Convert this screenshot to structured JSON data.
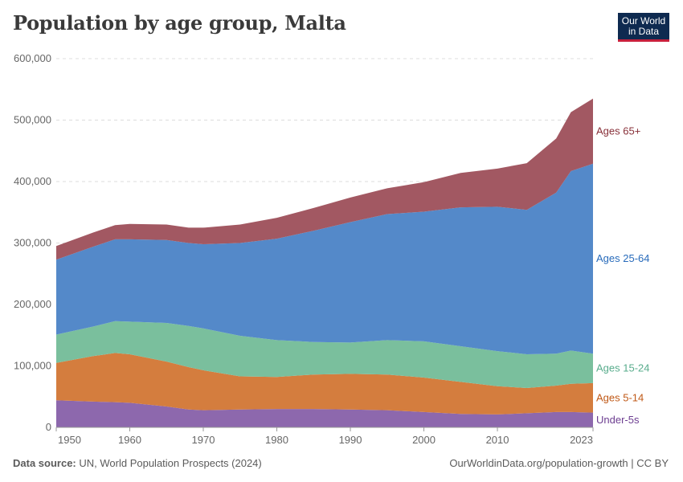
{
  "title": "Population by age group, Malta",
  "logo": {
    "line1": "Our World",
    "line2": "in Data"
  },
  "footer": {
    "source_label": "Data source:",
    "source_text": "UN, World Population Prospects (2024)",
    "url": "OurWorldinData.org/population-growth | CC BY"
  },
  "chart_data": {
    "type": "area",
    "stacked": true,
    "title": "Population by age group, Malta",
    "xlabel": "",
    "ylabel": "",
    "ylim": [
      0,
      600000
    ],
    "xlim": [
      1950,
      2023
    ],
    "grid": true,
    "yticks": [
      0,
      100000,
      200000,
      300000,
      400000,
      500000,
      600000
    ],
    "ytick_labels": [
      "0",
      "100,000",
      "200,000",
      "300,000",
      "400,000",
      "500,000",
      "600,000"
    ],
    "xticks": [
      1950,
      1960,
      1970,
      1980,
      1990,
      2000,
      2010,
      2023
    ],
    "xtick_labels": [
      "1950",
      "1960",
      "1970",
      "1980",
      "1990",
      "2000",
      "2010",
      "2023"
    ],
    "x": [
      1950,
      1955,
      1958,
      1960,
      1965,
      1968,
      1970,
      1975,
      1980,
      1985,
      1990,
      1995,
      2000,
      2005,
      2010,
      2014,
      2018,
      2020,
      2023
    ],
    "series": [
      {
        "name": "Under-5s",
        "color": "#8d68ad",
        "label_color": "#6d3e91",
        "values": [
          44000,
          42000,
          41000,
          40000,
          34000,
          29000,
          28000,
          29000,
          30000,
          30000,
          29000,
          28000,
          25000,
          22000,
          21000,
          23000,
          25000,
          25000,
          24000
        ]
      },
      {
        "name": "Ages 5-14",
        "color": "#d47d3e",
        "label_color": "#c05917",
        "values": [
          61000,
          74000,
          80000,
          79000,
          73000,
          69000,
          65000,
          54000,
          52000,
          56000,
          58000,
          58000,
          56000,
          52000,
          46000,
          41000,
          43000,
          46000,
          48000
        ]
      },
      {
        "name": "Ages 15-24",
        "color": "#7abf9d",
        "label_color": "#58ac8c",
        "values": [
          46000,
          48000,
          52000,
          53000,
          63000,
          67000,
          68000,
          66000,
          60000,
          53000,
          51000,
          56000,
          59000,
          58000,
          57000,
          55000,
          52000,
          54000,
          48000
        ]
      },
      {
        "name": "Ages 25-64",
        "color": "#5489c9",
        "label_color": "#286bbb",
        "values": [
          122000,
          130000,
          133000,
          134000,
          135000,
          135000,
          137000,
          151000,
          165000,
          181000,
          196000,
          205000,
          211000,
          226000,
          235000,
          235000,
          262000,
          292000,
          309000
        ]
      },
      {
        "name": "Ages 65+",
        "color": "#a25862",
        "label_color": "#883039",
        "values": [
          22000,
          23000,
          23000,
          25000,
          25000,
          25000,
          27000,
          30000,
          34000,
          37000,
          40000,
          42000,
          48000,
          56000,
          62000,
          76000,
          88000,
          96000,
          106000
        ]
      }
    ]
  }
}
